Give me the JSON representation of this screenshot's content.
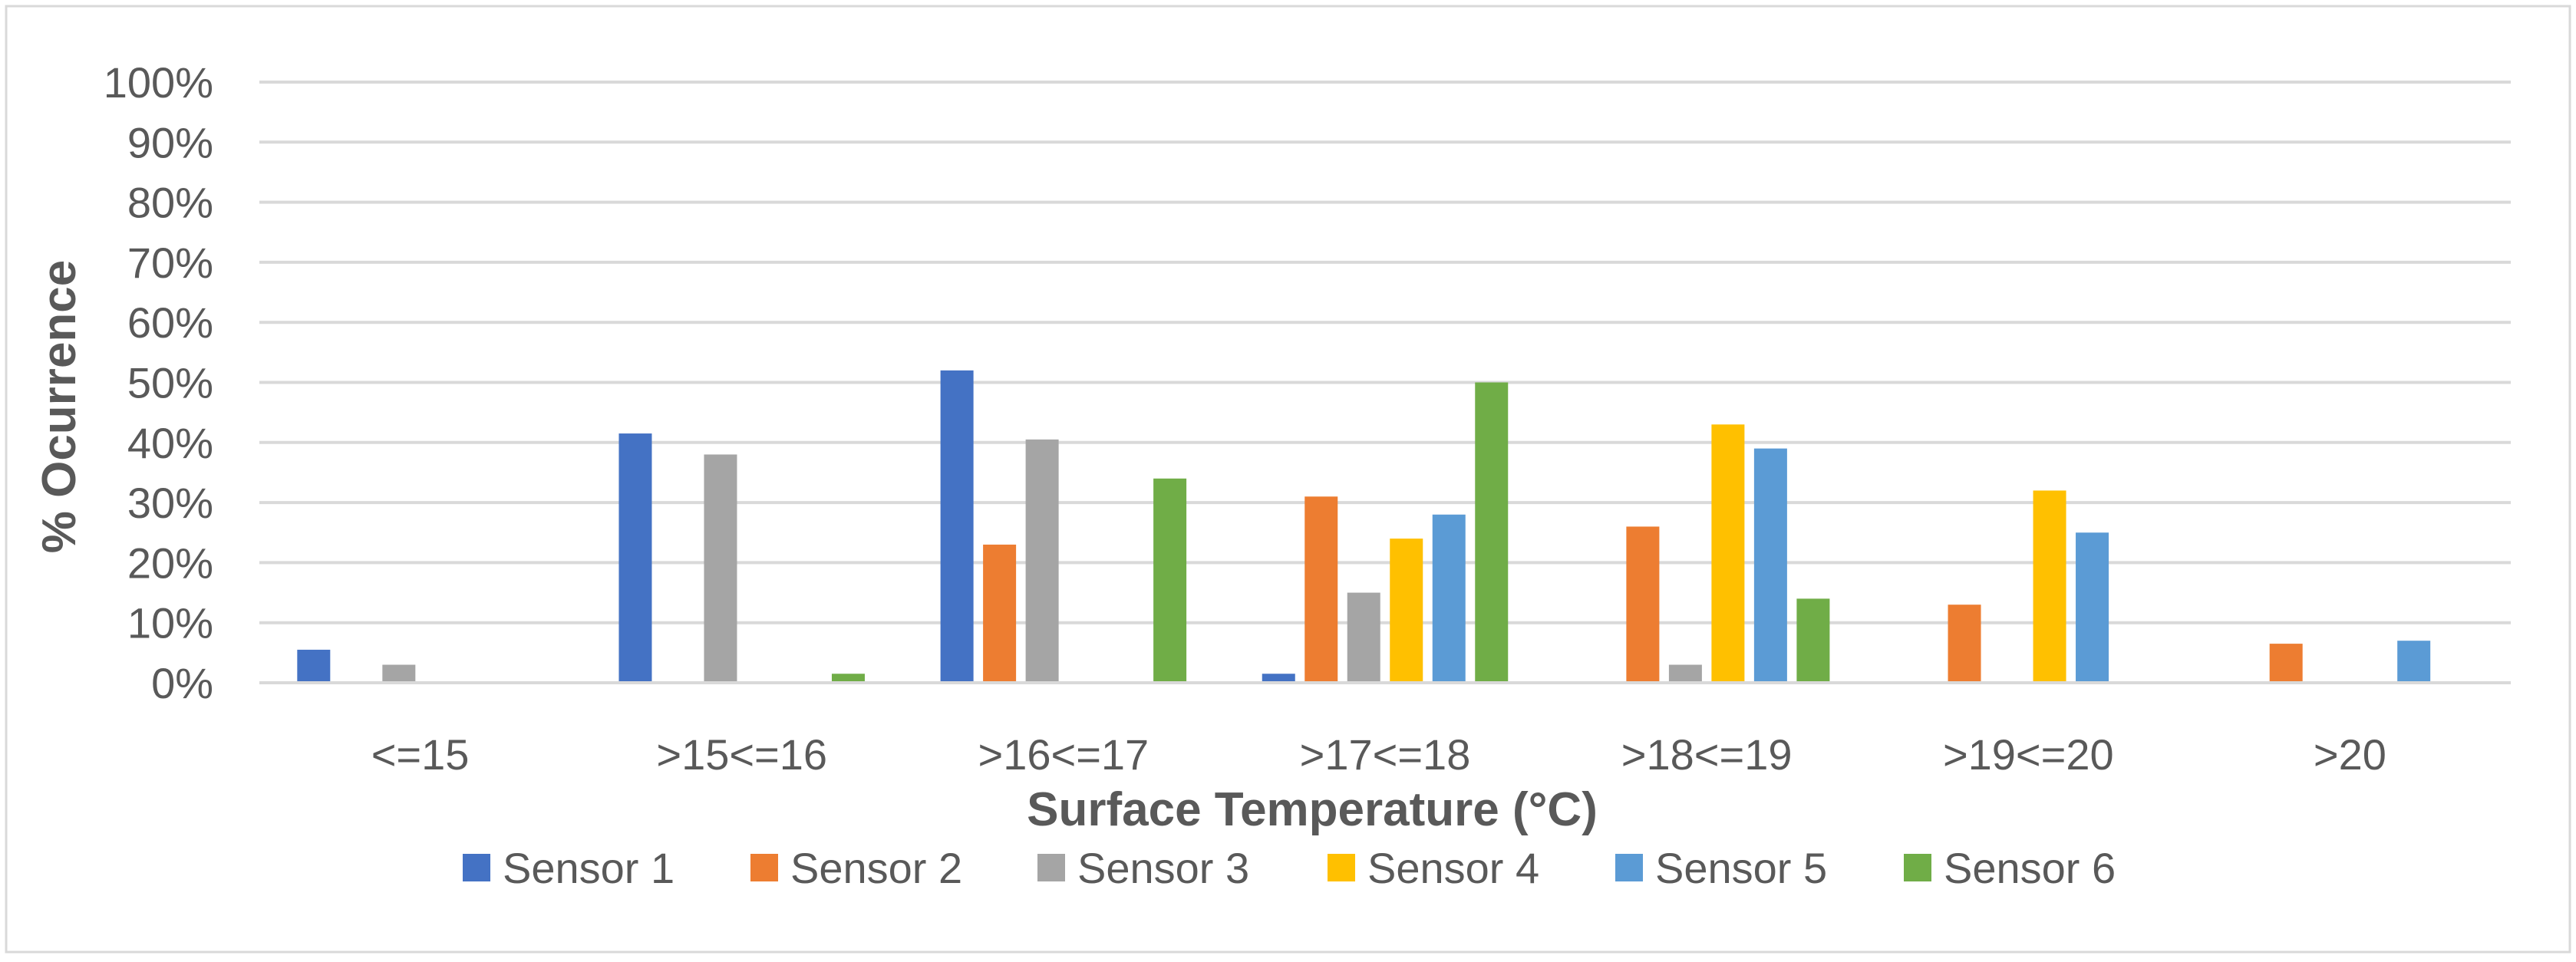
{
  "chart_data": {
    "type": "bar",
    "title": "",
    "xlabel": "Surface Temperature (°C)",
    "ylabel": "% Ocurrence",
    "ylim": [
      0,
      100
    ],
    "yticks": [
      "0%",
      "10%",
      "20%",
      "30%",
      "40%",
      "50%",
      "60%",
      "70%",
      "80%",
      "90%",
      "100%"
    ],
    "grid": true,
    "legend_position": "bottom",
    "categories": [
      "<=15",
      ">15<=16",
      ">16<=17",
      ">17<=18",
      ">18<=19",
      ">19<=20",
      ">20"
    ],
    "series": [
      {
        "name": "Sensor 1",
        "color": "#4472C4",
        "values": [
          5.5,
          41.5,
          52,
          1.5,
          0,
          0,
          0
        ]
      },
      {
        "name": "Sensor 2",
        "color": "#ED7D31",
        "values": [
          0,
          0,
          23,
          31,
          26,
          13,
          6.5
        ]
      },
      {
        "name": "Sensor 3",
        "color": "#A5A5A5",
        "values": [
          3,
          38,
          40.5,
          15,
          3,
          0,
          0
        ]
      },
      {
        "name": "Sensor 4",
        "color": "#FFC000",
        "values": [
          0,
          0,
          0,
          24,
          43,
          32,
          0
        ]
      },
      {
        "name": "Sensor 5",
        "color": "#5B9BD5",
        "values": [
          0,
          0,
          0,
          28,
          39,
          25,
          7
        ]
      },
      {
        "name": "Sensor 6",
        "color": "#70AD47",
        "values": [
          0,
          1.5,
          34,
          50,
          14,
          0,
          0
        ]
      }
    ]
  }
}
